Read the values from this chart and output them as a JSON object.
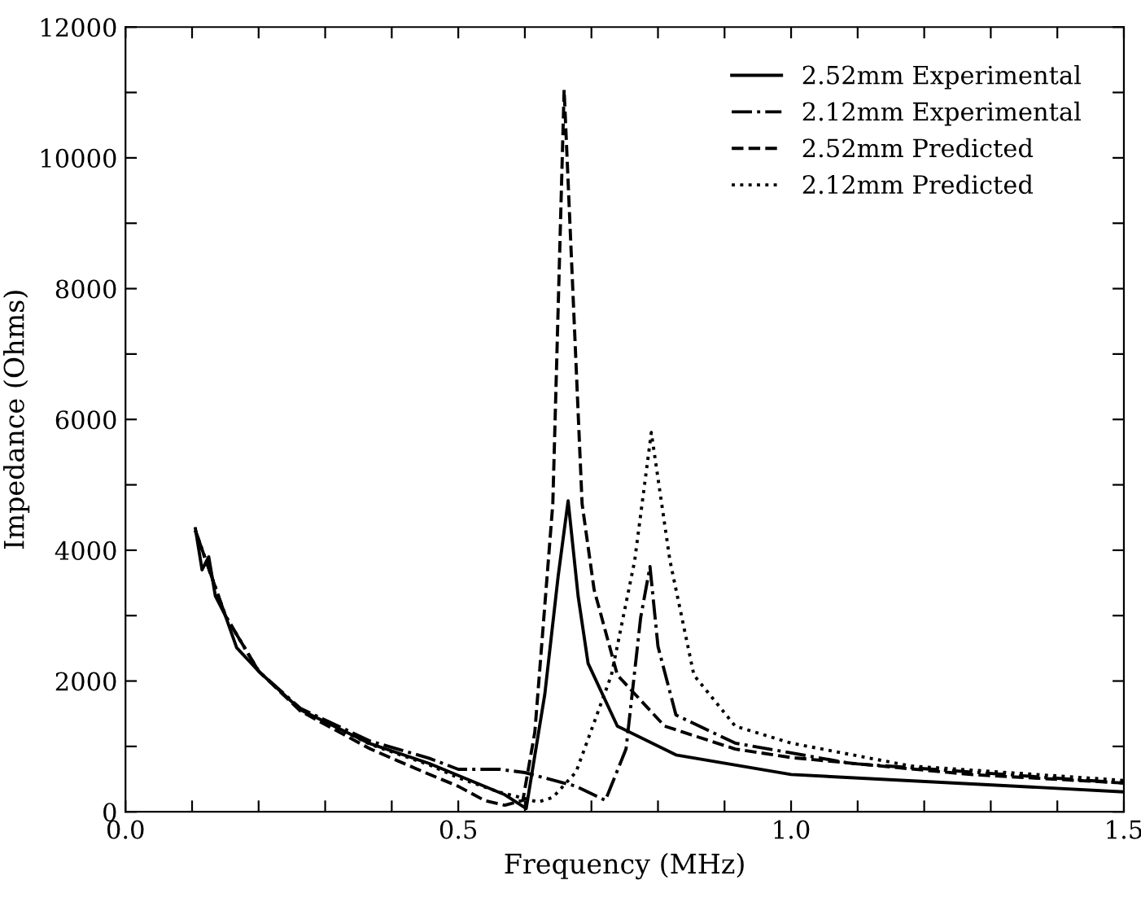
{
  "chart_data": {
    "type": "line",
    "xlabel": "Frequency (MHz)",
    "ylabel": "Impedance (Ohms)",
    "xlim": [
      0,
      1.5
    ],
    "ylim": [
      0,
      12000
    ],
    "xticks": [
      {
        "value": 0,
        "label": "0.0"
      },
      {
        "value": 0.1,
        "label": null
      },
      {
        "value": 0.2,
        "label": null
      },
      {
        "value": 0.3,
        "label": null
      },
      {
        "value": 0.4,
        "label": null
      },
      {
        "value": 0.5,
        "label": "0.5"
      },
      {
        "value": 0.6,
        "label": null
      },
      {
        "value": 0.7,
        "label": null
      },
      {
        "value": 0.8,
        "label": null
      },
      {
        "value": 0.9,
        "label": null
      },
      {
        "value": 1.0,
        "label": "1.0"
      },
      {
        "value": 1.1,
        "label": null
      },
      {
        "value": 1.2,
        "label": null
      },
      {
        "value": 1.3,
        "label": null
      },
      {
        "value": 1.4,
        "label": null
      },
      {
        "value": 1.5,
        "label": "1.5"
      }
    ],
    "yticks": [
      0,
      {
        "value": 1000,
        "label": null
      },
      2000,
      {
        "value": 3000,
        "label": null
      },
      4000,
      {
        "value": 5000,
        "label": null
      },
      6000,
      {
        "value": 7000,
        "label": null
      },
      8000,
      {
        "value": 9000,
        "label": null
      },
      10000,
      {
        "value": 11000,
        "label": null
      },
      12000
    ],
    "grid": false,
    "legend": "top right",
    "marker": "none",
    "series": [
      {
        "name": "2.52mm Experimental",
        "color": "#000000",
        "line_style": "solid",
        "x": [
          0.105,
          0.115,
          0.125,
          0.135,
          0.15,
          0.167,
          0.2,
          0.263,
          0.368,
          0.456,
          0.57,
          0.602,
          0.63,
          0.65,
          0.665,
          0.68,
          0.695,
          0.739,
          0.827,
          1.0,
          1.5
        ],
        "values": [
          4330,
          3700,
          3900,
          3300,
          3000,
          2510,
          2150,
          1560,
          1040,
          740,
          260,
          50,
          1800,
          3600,
          4756,
          3300,
          2270,
          1310,
          870,
          570,
          305
        ]
      },
      {
        "name": "2.12mm Experimental",
        "color": "#000000",
        "line_style": "dashdot",
        "x": [
          0.105,
          0.15,
          0.2,
          0.263,
          0.368,
          0.456,
          0.5,
          0.562,
          0.6,
          0.677,
          0.721,
          0.752,
          0.774,
          0.788,
          0.8,
          0.827,
          0.916,
          1.09,
          1.5
        ],
        "values": [
          4300,
          3000,
          2150,
          1580,
          1080,
          820,
          650,
          650,
          600,
          390,
          175,
          960,
          2970,
          3750,
          2530,
          1480,
          1050,
          740,
          440
        ]
      },
      {
        "name": "2.52mm Predicted",
        "color": "#000000",
        "line_style": "dashed",
        "x": [
          0.105,
          0.15,
          0.2,
          0.263,
          0.368,
          0.45,
          0.5,
          0.54,
          0.57,
          0.597,
          0.615,
          0.642,
          0.659,
          0.686,
          0.704,
          0.739,
          0.81,
          0.916,
          1.0,
          1.27,
          1.5
        ],
        "values": [
          4300,
          3000,
          2150,
          1540,
          960,
          600,
          390,
          170,
          100,
          175,
          1220,
          4710,
          11040,
          4710,
          3400,
          2090,
          1310,
          960,
          830,
          570,
          440
        ]
      },
      {
        "name": "2.12mm Predicted",
        "color": "#000000",
        "line_style": "dotted",
        "x": [
          0.105,
          0.15,
          0.2,
          0.263,
          0.368,
          0.456,
          0.5,
          0.562,
          0.62,
          0.642,
          0.677,
          0.73,
          0.765,
          0.79,
          0.818,
          0.854,
          0.916,
          1.0,
          1.18,
          1.5
        ],
        "values": [
          4300,
          3000,
          2150,
          1560,
          1030,
          720,
          520,
          300,
          150,
          220,
          610,
          2090,
          3840,
          5800,
          3840,
          2090,
          1310,
          1050,
          700,
          480
        ]
      }
    ]
  }
}
